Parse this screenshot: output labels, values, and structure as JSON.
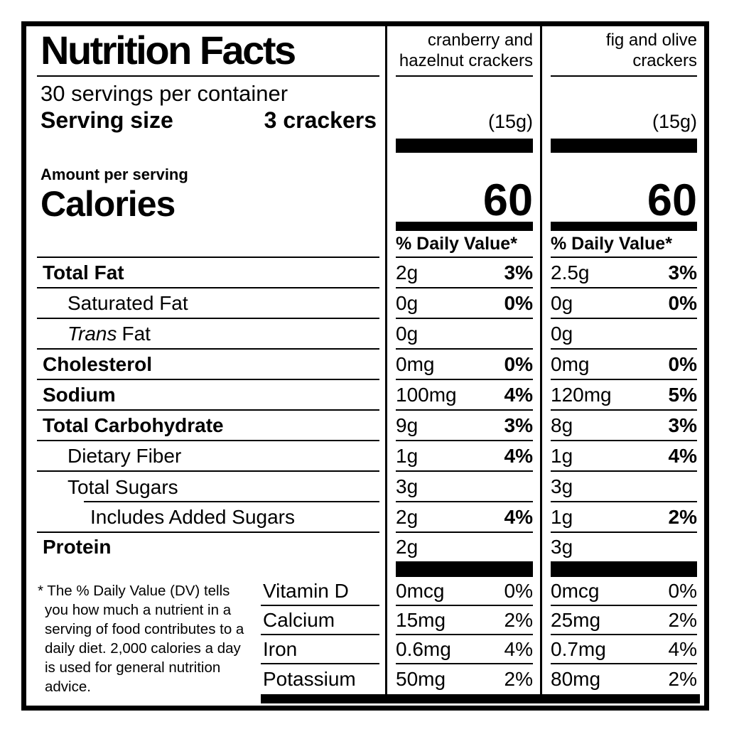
{
  "colors": {
    "text": "#000000",
    "background": "#ffffff"
  },
  "label": {
    "title": "Nutrition Facts",
    "servings_per_container": "30 servings per container",
    "serving_size_label": "Serving size",
    "serving_size_value": "3 crackers",
    "amount_per_serving": "Amount per serving",
    "calories_label": "Calories",
    "daily_value_header": "% Daily Value*",
    "footnote": "* The % Daily Value (DV) tells you how much a nutrient in a serving of food contributes to a daily diet. 2,000 calories a day is used for general nutrition advice."
  },
  "products": [
    {
      "name": "cranberry and hazelnut crackers",
      "serving_weight": "(15g)",
      "calories": "60"
    },
    {
      "name": "fig and olive crackers",
      "serving_weight": "(15g)",
      "calories": "60"
    }
  ],
  "nutrients": [
    {
      "name": "Total Fat",
      "amount_1": "2g",
      "dv_1": "3%",
      "amount_2": "2.5g",
      "dv_2": "3%"
    },
    {
      "name": "Saturated Fat",
      "amount_1": "0g",
      "dv_1": "0%",
      "amount_2": "0g",
      "dv_2": "0%"
    },
    {
      "name_italic": "Trans",
      "name": "Fat",
      "amount_1": "0g",
      "dv_1": "",
      "amount_2": "0g",
      "dv_2": ""
    },
    {
      "name": "Cholesterol",
      "amount_1": "0mg",
      "dv_1": "0%",
      "amount_2": "0mg",
      "dv_2": "0%"
    },
    {
      "name": "Sodium",
      "amount_1": "100mg",
      "dv_1": "4%",
      "amount_2": "120mg",
      "dv_2": "5%"
    },
    {
      "name": "Total Carbohydrate",
      "amount_1": "9g",
      "dv_1": "3%",
      "amount_2": "8g",
      "dv_2": "3%"
    },
    {
      "name": "Dietary Fiber",
      "amount_1": "1g",
      "dv_1": "4%",
      "amount_2": "1g",
      "dv_2": "4%"
    },
    {
      "name": "Total Sugars",
      "amount_1": "3g",
      "dv_1": "",
      "amount_2": "3g",
      "dv_2": ""
    },
    {
      "name": "Includes Added Sugars",
      "amount_1": "2g",
      "dv_1": "4%",
      "amount_2": "1g",
      "dv_2": "2%"
    },
    {
      "name": "Protein",
      "amount_1": "2g",
      "dv_1": "",
      "amount_2": "3g",
      "dv_2": ""
    }
  ],
  "vitamins": [
    {
      "name": "Vitamin D",
      "amount_1": "0mcg",
      "dv_1": "0%",
      "amount_2": "0mcg",
      "dv_2": "0%"
    },
    {
      "name": "Calcium",
      "amount_1": "15mg",
      "dv_1": "2%",
      "amount_2": "25mg",
      "dv_2": "2%"
    },
    {
      "name": "Iron",
      "amount_1": "0.6mg",
      "dv_1": "4%",
      "amount_2": "0.7mg",
      "dv_2": "4%"
    },
    {
      "name": "Potassium",
      "amount_1": "50mg",
      "dv_1": "2%",
      "amount_2": "80mg",
      "dv_2": "2%"
    }
  ]
}
